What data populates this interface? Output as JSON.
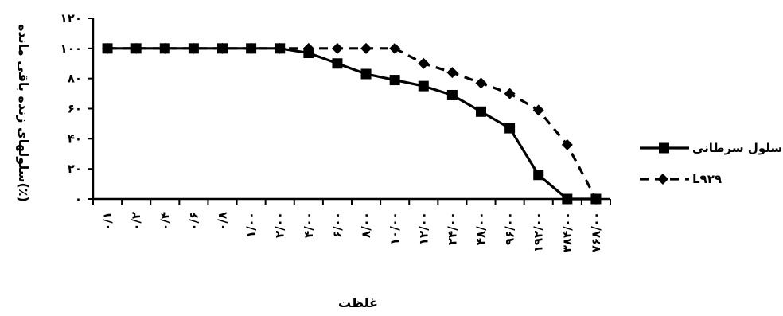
{
  "chart_data": {
    "type": "line",
    "xlabel": "غلظت",
    "ylabel": "سلولهای زنده باقی مانده(٪)",
    "ylim": [
      0,
      120
    ],
    "yticks": [
      "۰",
      "۲۰",
      "۴۰",
      "۶۰",
      "۸۰",
      "۱۰۰",
      "۱۲۰"
    ],
    "categories": [
      "۰/۱",
      "۰/۲",
      "۰/۴",
      "۰/۶",
      "۰/۸",
      "۱/۰۰",
      "۲/۰۰",
      "۴/۰۰",
      "۶/۰۰",
      "۸/۰۰",
      "۱۰/۰۰",
      "۱۲/۰۰",
      "۲۴/۰۰",
      "۴۸/۰۰",
      "۹۶/۰۰",
      "۱۹۲/۰۰",
      "۳۸۴/۰۰",
      "۷۶۸/۰۰"
    ],
    "series": [
      {
        "name": "سلول سرطانی",
        "style": "solid",
        "marker": "square",
        "color": "#000000",
        "values": [
          100,
          100,
          100,
          100,
          100,
          100,
          100,
          97,
          90,
          83,
          79,
          75,
          69,
          58,
          47,
          16,
          0,
          0
        ]
      },
      {
        "name": "L۹۲۹",
        "style": "dashed",
        "marker": "diamond",
        "color": "#000000",
        "values": [
          100,
          100,
          100,
          100,
          100,
          100,
          100,
          100,
          100,
          100,
          100,
          90,
          84,
          77,
          70,
          59,
          36,
          0
        ]
      }
    ],
    "grid": false,
    "legend_position": "right"
  }
}
